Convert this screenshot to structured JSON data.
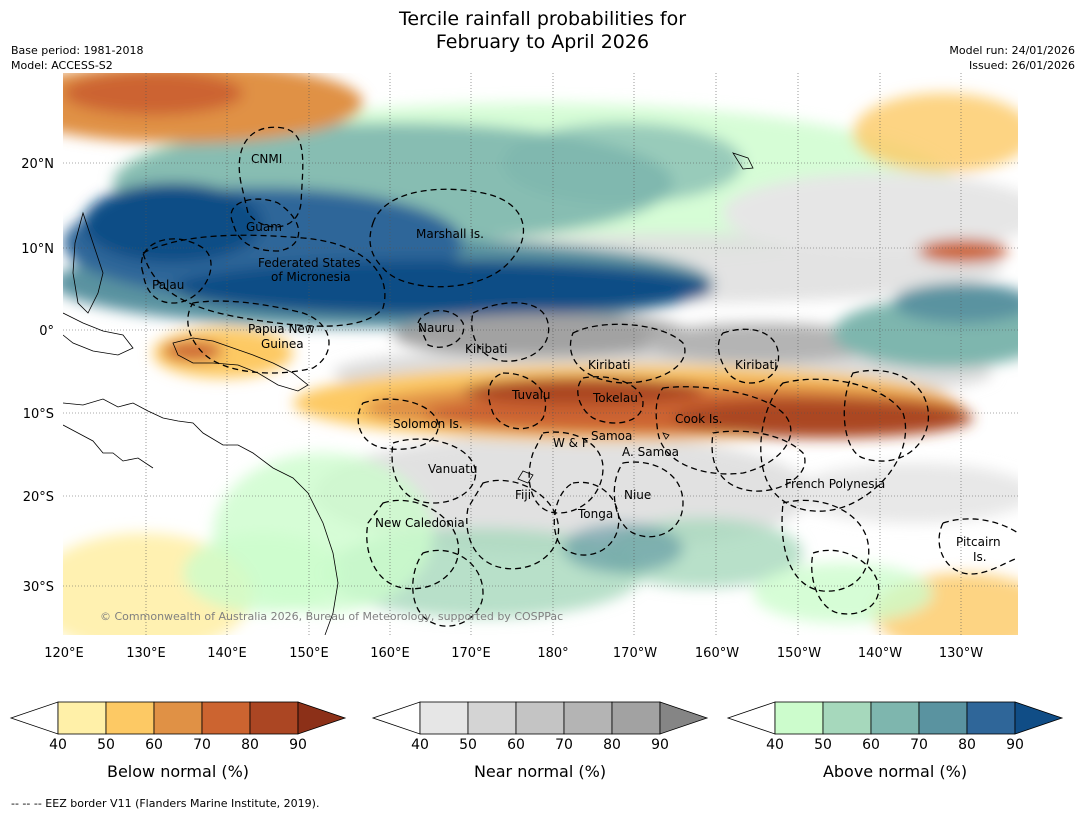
{
  "title": {
    "line1": "Tercile rainfall probabilities for",
    "line2": "February to April 2026"
  },
  "meta_left": {
    "base_period": "Base period: 1981-2018",
    "model": "Model: ACCESS-S2"
  },
  "meta_right": {
    "model_run": "Model run: 24/01/2026",
    "issued": "Issued: 26/01/2026"
  },
  "axes": {
    "lon_ticks": [
      "120°E",
      "130°E",
      "140°E",
      "150°E",
      "160°E",
      "170°E",
      "180°",
      "170°W",
      "160°W",
      "150°W",
      "140°W",
      "130°W"
    ],
    "lat_ticks": [
      "20°N",
      "10°N",
      "0°",
      "10°S",
      "20°S",
      "30°S"
    ]
  },
  "regions": [
    {
      "name": "CNMI"
    },
    {
      "name": "Guam"
    },
    {
      "name": "Marshall Is."
    },
    {
      "name": "Federated States"
    },
    {
      "name": "of Micronesia"
    },
    {
      "name": "Palau"
    },
    {
      "name": "Papua New"
    },
    {
      "name": "Guinea"
    },
    {
      "name": "Nauru"
    },
    {
      "name": "Kiribati"
    },
    {
      "name": "Kiribati"
    },
    {
      "name": "Kiribati"
    },
    {
      "name": "Tuvalu"
    },
    {
      "name": "Tokelau"
    },
    {
      "name": "Cook Is."
    },
    {
      "name": "Solomon Is."
    },
    {
      "name": "W & F"
    },
    {
      "name": "Samoa"
    },
    {
      "name": "A. Samoa"
    },
    {
      "name": "Vanuatu"
    },
    {
      "name": "Fiji"
    },
    {
      "name": "Niue"
    },
    {
      "name": "French Polynesia"
    },
    {
      "name": "Tonga"
    },
    {
      "name": "New Caledonia"
    },
    {
      "name": "Pitcairn"
    },
    {
      "name": "Is."
    }
  ],
  "copyright": "© Commonwealth of Australia 2026, Bureau of Meteorology, supported by COSPPac",
  "colorbars": [
    {
      "title": "Below normal (%)",
      "ticks": [
        "40",
        "50",
        "60",
        "70",
        "80",
        "90"
      ],
      "colors": [
        "#fff0a8",
        "#fdc964",
        "#e09145",
        "#cc6430",
        "#ab4623",
        "#8c3018"
      ]
    },
    {
      "title": "Near normal (%)",
      "ticks": [
        "40",
        "50",
        "60",
        "70",
        "80",
        "90"
      ],
      "colors": [
        "#e6e6e6",
        "#d4d4d4",
        "#c4c4c4",
        "#b4b4b4",
        "#a2a2a2",
        "#858585"
      ]
    },
    {
      "title": "Above normal (%)",
      "ticks": [
        "40",
        "50",
        "60",
        "70",
        "80",
        "90"
      ],
      "colors": [
        "#ccfccc",
        "#a6d8bc",
        "#7eb6ae",
        "#5a93a0",
        "#2f6699",
        "#104d86"
      ]
    }
  ],
  "eez_note": "--  --  -- EEZ border V11 (Flanders Marine Institute, 2019)."
}
